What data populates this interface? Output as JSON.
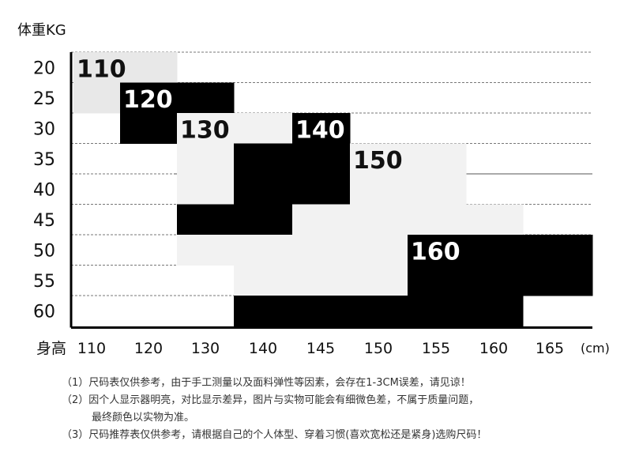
{
  "chart_data": {
    "type": "heatmap",
    "ylabel": "体重KG",
    "xlabel": "身高",
    "x_unit": "(cm)",
    "y_ticks": [
      20,
      25,
      30,
      35,
      40,
      45,
      50,
      55,
      60
    ],
    "x_ticks": [
      110,
      120,
      130,
      140,
      145,
      150,
      155,
      160,
      165
    ],
    "legend": "none",
    "regions": [
      {
        "size": "110",
        "color": "#e8e8e8",
        "text_color": "#111111",
        "cells": [
          [
            110,
            20
          ],
          [
            120,
            20
          ],
          [
            110,
            25
          ]
        ]
      },
      {
        "size": "120",
        "color": "#000000",
        "text_color": "#ffffff",
        "cells": [
          [
            120,
            25
          ],
          [
            130,
            25
          ],
          [
            120,
            30
          ]
        ]
      },
      {
        "size": "130",
        "color": "#f2f2f2",
        "text_color": "#111111",
        "cells": [
          [
            130,
            30
          ],
          [
            140,
            30
          ],
          [
            130,
            35
          ],
          [
            130,
            40
          ]
        ]
      },
      {
        "size": "140",
        "color": "#000000",
        "text_color": "#ffffff",
        "cells": [
          [
            145,
            30
          ],
          [
            140,
            35
          ],
          [
            145,
            35
          ],
          [
            140,
            40
          ],
          [
            145,
            40
          ],
          [
            130,
            45
          ],
          [
            140,
            45
          ]
        ]
      },
      {
        "size": "150",
        "color": "#f2f2f2",
        "text_color": "#111111",
        "cells": [
          [
            150,
            35
          ],
          [
            155,
            35
          ],
          [
            150,
            40
          ],
          [
            155,
            40
          ],
          [
            145,
            45
          ],
          [
            150,
            45
          ],
          [
            155,
            45
          ],
          [
            160,
            45
          ],
          [
            130,
            50
          ],
          [
            140,
            50
          ],
          [
            145,
            50
          ],
          [
            150,
            50
          ],
          [
            140,
            55
          ],
          [
            145,
            55
          ],
          [
            150,
            55
          ]
        ]
      },
      {
        "size": "160",
        "color": "#000000",
        "text_color": "#ffffff",
        "cells": [
          [
            155,
            50
          ],
          [
            160,
            50
          ],
          [
            165,
            50
          ],
          [
            155,
            55
          ],
          [
            160,
            55
          ],
          [
            165,
            55
          ],
          [
            140,
            60
          ],
          [
            145,
            60
          ],
          [
            150,
            60
          ],
          [
            155,
            60
          ],
          [
            160,
            60
          ]
        ]
      }
    ]
  },
  "notes": [
    "（1）尺码表仅供参考，由于手工测量以及面料弹性等因素，会存在1-3CM误差，请见谅！",
    "（2）因个人显示器明亮，对比显示差异，图片与实物可能会有细微色差，不属于质量问题，",
    "最终颜色以实物为准。",
    "（3）尺码推荐表仅供参考，请根据自己的个人体型、穿着习惯(喜欢宽松还是紧身)选购尺码！"
  ]
}
